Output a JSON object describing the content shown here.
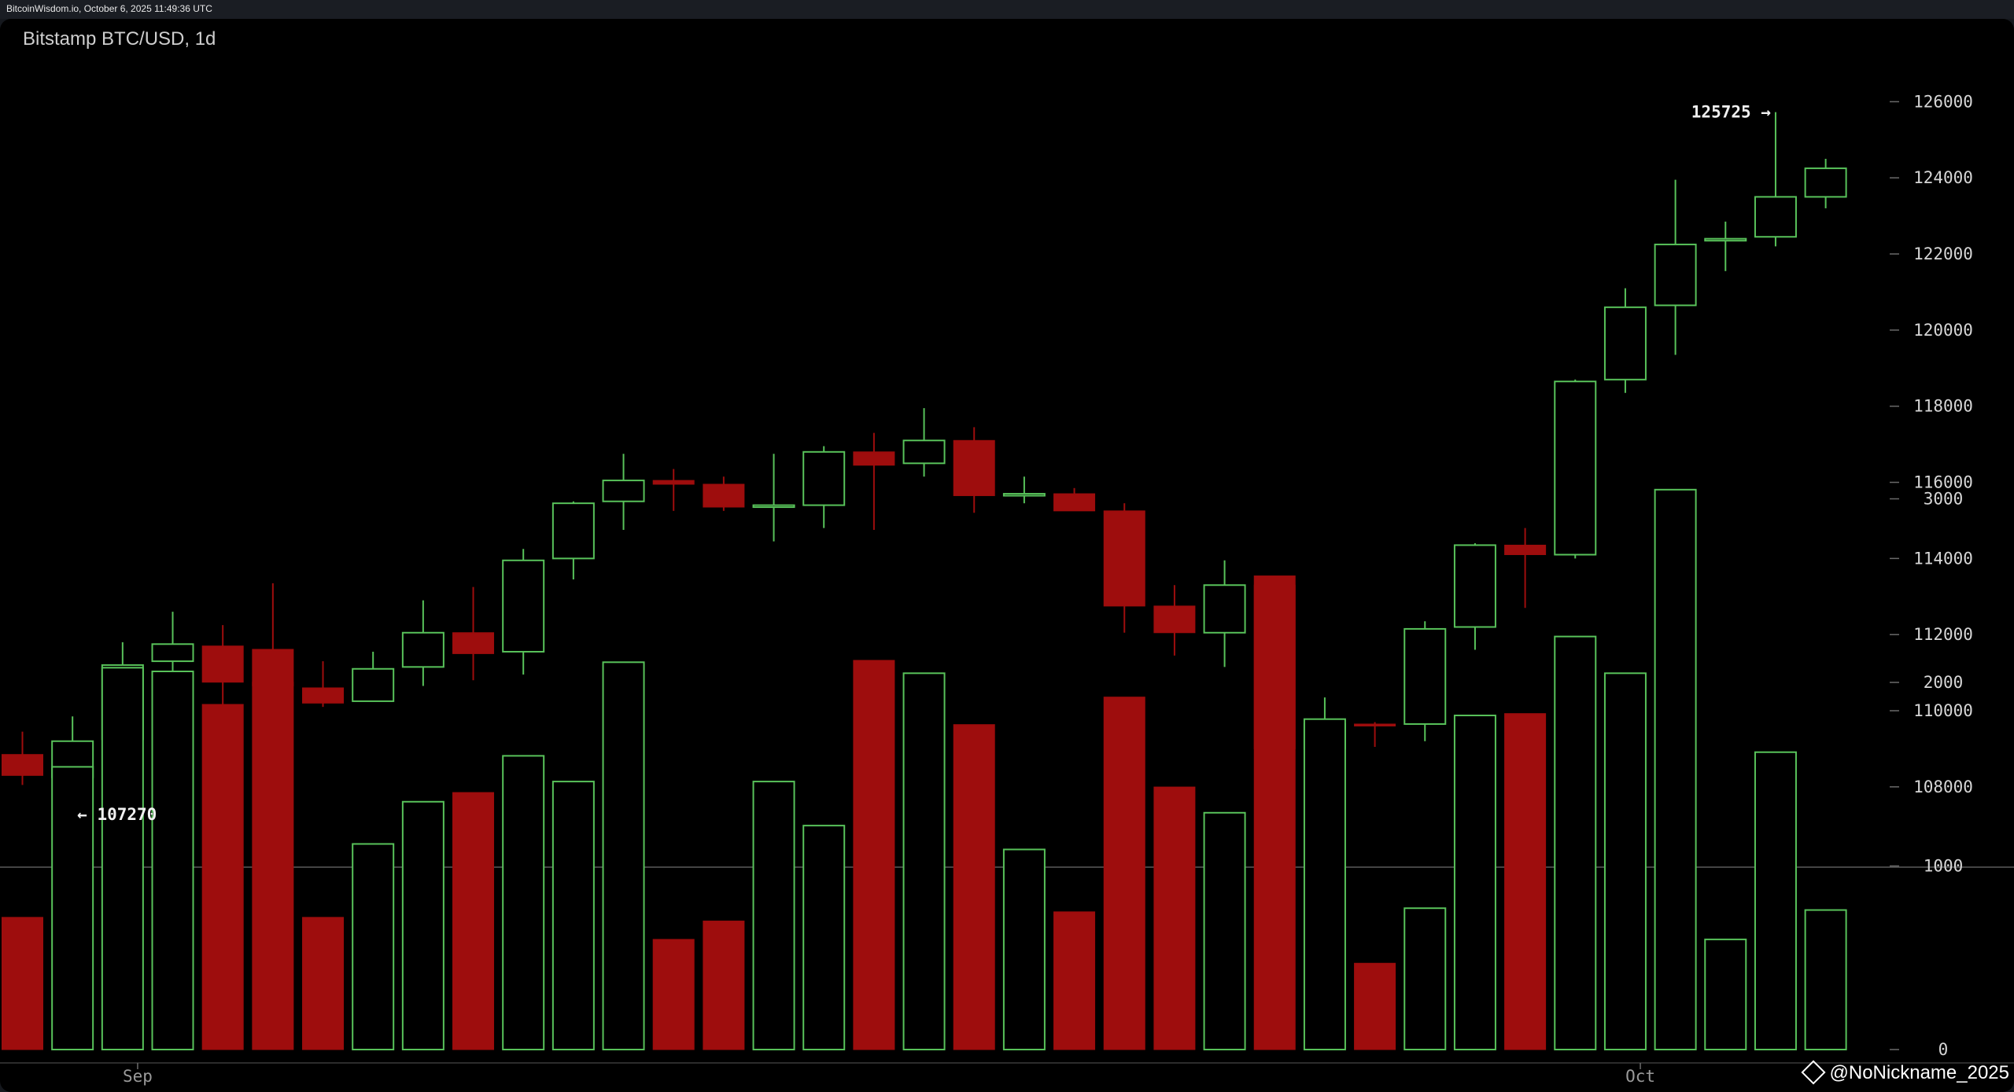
{
  "window": {
    "header_text": "BitcoinWisdom.io, October 6, 2025 11:49:36 UTC",
    "watermark": "@NoNickname_2025"
  },
  "colors": {
    "up": "#58c25a",
    "down": "#9e0d0d",
    "background": "#000000",
    "axis_text": "#d6d6d6"
  },
  "chart_data": {
    "type": "candlestick",
    "title": "Bitstamp BTC/USD, 1d",
    "price_axis": {
      "ylim": [
        106200,
        126400
      ],
      "ticks": [
        108000,
        110000,
        112000,
        114000,
        116000,
        118000,
        120000,
        122000,
        124000,
        126000
      ],
      "position": "right"
    },
    "volume_axis": {
      "ylim": [
        0,
        3300
      ],
      "ticks": [
        0,
        1000,
        2000,
        3000
      ],
      "position": "right"
    },
    "x_ticks": [
      {
        "label": "Sep",
        "index": 2.3
      },
      {
        "label": "Oct",
        "index": 32.3
      }
    ],
    "annotations": [
      {
        "text": "← 107270",
        "value": 107270,
        "index": 1
      },
      {
        "text": "125725 →",
        "value": 125725,
        "index": 35
      }
    ],
    "grid": false,
    "candles": [
      {
        "o": 108850,
        "h": 109450,
        "l": 108050,
        "c": 108300,
        "v": 720
      },
      {
        "o": 108250,
        "h": 109850,
        "l": 107270,
        "c": 109200,
        "v": 1540
      },
      {
        "o": 109250,
        "h": 111800,
        "l": 108400,
        "c": 111200,
        "v": 2080
      },
      {
        "o": 111300,
        "h": 112600,
        "l": 110550,
        "c": 111750,
        "v": 2060
      },
      {
        "o": 111700,
        "h": 112250,
        "l": 109350,
        "c": 110750,
        "v": 1880
      },
      {
        "o": 110750,
        "h": 113350,
        "l": 110250,
        "c": 110650,
        "v": 2180
      },
      {
        "o": 110600,
        "h": 111300,
        "l": 110100,
        "c": 110200,
        "v": 720
      },
      {
        "o": 110250,
        "h": 111550,
        "l": 110250,
        "c": 111100,
        "v": 1120
      },
      {
        "o": 111150,
        "h": 112900,
        "l": 110650,
        "c": 112050,
        "v": 1350
      },
      {
        "o": 112050,
        "h": 113250,
        "l": 110800,
        "c": 111500,
        "v": 1400
      },
      {
        "o": 111550,
        "h": 114250,
        "l": 110950,
        "c": 113950,
        "v": 1600
      },
      {
        "o": 114000,
        "h": 115500,
        "l": 113450,
        "c": 115450,
        "v": 1460
      },
      {
        "o": 115500,
        "h": 116750,
        "l": 114750,
        "c": 116050,
        "v": 2110
      },
      {
        "o": 116050,
        "h": 116350,
        "l": 115250,
        "c": 115950,
        "v": 600
      },
      {
        "o": 115950,
        "h": 116150,
        "l": 115250,
        "c": 115350,
        "v": 700
      },
      {
        "o": 115350,
        "h": 116750,
        "l": 114450,
        "c": 115400,
        "v": 1460
      },
      {
        "o": 115400,
        "h": 116950,
        "l": 114800,
        "c": 116800,
        "v": 1220
      },
      {
        "o": 116800,
        "h": 117300,
        "l": 114750,
        "c": 116450,
        "v": 2120
      },
      {
        "o": 116500,
        "h": 117950,
        "l": 116150,
        "c": 117100,
        "v": 2050
      },
      {
        "o": 117100,
        "h": 117450,
        "l": 115200,
        "c": 115650,
        "v": 1770
      },
      {
        "o": 115650,
        "h": 116150,
        "l": 115450,
        "c": 115700,
        "v": 1090
      },
      {
        "o": 115700,
        "h": 115850,
        "l": 115250,
        "c": 115250,
        "v": 750
      },
      {
        "o": 115250,
        "h": 115450,
        "l": 112050,
        "c": 112750,
        "v": 1920
      },
      {
        "o": 112750,
        "h": 113300,
        "l": 111450,
        "c": 112050,
        "v": 1430
      },
      {
        "o": 112050,
        "h": 113950,
        "l": 111150,
        "c": 113300,
        "v": 1290
      },
      {
        "o": 113300,
        "h": 113500,
        "l": 108650,
        "c": 109000,
        "v": 2580
      },
      {
        "o": 109000,
        "h": 110350,
        "l": 108650,
        "c": 109650,
        "v": 1800
      },
      {
        "o": 109650,
        "h": 109700,
        "l": 109050,
        "c": 109600,
        "v": 470
      },
      {
        "o": 109650,
        "h": 112350,
        "l": 109200,
        "c": 112150,
        "v": 770
      },
      {
        "o": 112200,
        "h": 114400,
        "l": 111600,
        "c": 114350,
        "v": 1820
      },
      {
        "o": 114350,
        "h": 114800,
        "l": 112700,
        "c": 114100,
        "v": 1830
      },
      {
        "o": 114100,
        "h": 118700,
        "l": 114000,
        "c": 118650,
        "v": 2250
      },
      {
        "o": 118700,
        "h": 121100,
        "l": 118350,
        "c": 120600,
        "v": 2050
      },
      {
        "o": 120650,
        "h": 123950,
        "l": 119350,
        "c": 122250,
        "v": 3050
      },
      {
        "o": 122350,
        "h": 122850,
        "l": 121550,
        "c": 122400,
        "v": 600
      },
      {
        "o": 122450,
        "h": 125725,
        "l": 122200,
        "c": 123500,
        "v": 1620
      },
      {
        "o": 123500,
        "h": 124500,
        "l": 123200,
        "c": 124250,
        "v": 760
      }
    ]
  }
}
